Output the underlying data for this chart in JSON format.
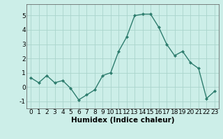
{
  "x": [
    0,
    1,
    2,
    3,
    4,
    5,
    6,
    7,
    8,
    9,
    10,
    11,
    12,
    13,
    14,
    15,
    16,
    17,
    18,
    19,
    20,
    21,
    22,
    23
  ],
  "y": [
    0.65,
    0.3,
    0.8,
    0.3,
    0.45,
    -0.1,
    -0.9,
    -0.55,
    -0.2,
    0.8,
    1.0,
    2.5,
    3.5,
    5.0,
    5.1,
    5.1,
    4.2,
    3.0,
    2.2,
    2.5,
    1.7,
    1.3,
    -0.8,
    -0.3
  ],
  "line_color": "#2e7d6e",
  "marker": "D",
  "marker_size": 2.0,
  "line_width": 1.0,
  "bg_color": "#cceee8",
  "grid_color": "#aad4cc",
  "xlabel": "Humidex (Indice chaleur)",
  "xlabel_fontsize": 7.5,
  "tick_fontsize": 6.5,
  "xlim": [
    -0.5,
    23.5
  ],
  "ylim": [
    -1.5,
    5.8
  ],
  "yticks": [
    -1,
    0,
    1,
    2,
    3,
    4,
    5
  ],
  "xticks": [
    0,
    1,
    2,
    3,
    4,
    5,
    6,
    7,
    8,
    9,
    10,
    11,
    12,
    13,
    14,
    15,
    16,
    17,
    18,
    19,
    20,
    21,
    22,
    23
  ]
}
